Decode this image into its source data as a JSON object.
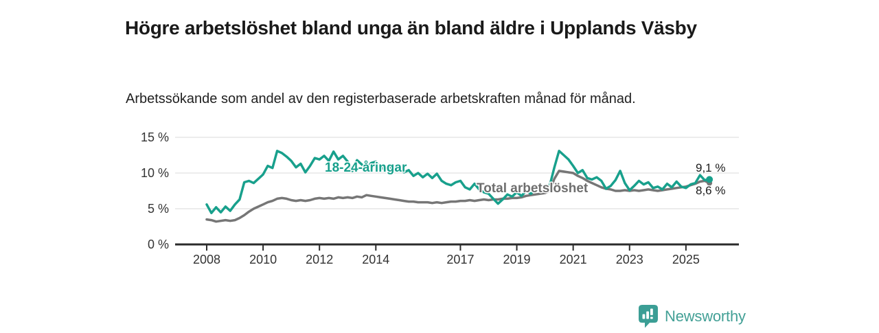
{
  "header": {
    "title": "Högre arbetslöshet bland unga än bland äldre i Upplands Väsby",
    "subtitle": "Arbetssökande som andel av den registerbaserade arbetskraften månad för månad."
  },
  "chart_data": {
    "type": "line",
    "unit": "%",
    "grid": "horizontal",
    "ylim": [
      0,
      15
    ],
    "y_ticks": [
      {
        "value": 0,
        "label": "0 %"
      },
      {
        "value": 5,
        "label": "5 %"
      },
      {
        "value": 10,
        "label": "10 %"
      },
      {
        "value": 15,
        "label": "15 %"
      }
    ],
    "x_ticks": [
      {
        "value": 2008,
        "label": "2008"
      },
      {
        "value": 2010,
        "label": "2010"
      },
      {
        "value": 2012,
        "label": "2012"
      },
      {
        "value": 2014,
        "label": "2014"
      },
      {
        "value": 2017,
        "label": "2017"
      },
      {
        "value": 2019,
        "label": "2019"
      },
      {
        "value": 2021,
        "label": "2021"
      },
      {
        "value": 2023,
        "label": "2023"
      },
      {
        "value": 2025,
        "label": "2025"
      }
    ],
    "series": [
      {
        "name": "18-24-åringar",
        "color": "#18a08c",
        "end_label": "9,1 %",
        "end_value": 9.1,
        "start_year": 2008,
        "points_per_year": 6,
        "values": [
          5.6,
          4.4,
          5.2,
          4.5,
          5.3,
          4.7,
          5.6,
          6.3,
          8.7,
          8.9,
          8.6,
          9.2,
          9.8,
          11.0,
          10.7,
          13.1,
          12.8,
          12.3,
          11.7,
          10.8,
          11.3,
          10.1,
          11.0,
          12.1,
          11.9,
          12.4,
          11.7,
          13.0,
          11.9,
          12.4,
          11.6,
          10.3,
          11.8,
          11.2,
          10.6,
          11.4,
          11.6,
          10.9,
          10.4,
          10.9,
          10.3,
          10.6,
          10.1,
          10.4,
          9.6,
          10.0,
          9.4,
          9.9,
          9.3,
          9.9,
          8.9,
          8.5,
          8.3,
          8.7,
          8.9,
          8.0,
          7.7,
          8.5,
          7.7,
          7.3,
          7.1,
          6.4,
          5.7,
          6.3,
          7.0,
          6.7,
          7.3,
          6.8,
          7.5,
          7.1,
          7.8,
          7.4,
          7.6,
          8.2,
          10.8,
          13.1,
          12.5,
          11.9,
          11.0,
          10.0,
          10.4,
          9.3,
          9.1,
          9.4,
          8.9,
          7.8,
          8.2,
          9.0,
          10.3,
          8.6,
          7.6,
          8.2,
          8.9,
          8.4,
          8.7,
          7.9,
          8.1,
          7.7,
          8.5,
          8.0,
          8.8,
          8.1,
          7.9,
          8.4,
          8.6,
          9.7,
          9.0,
          9.1
        ]
      },
      {
        "name": "Total arbetslöshet",
        "color": "#767676",
        "end_label": "8,6 %",
        "end_value": 8.6,
        "start_year": 2008,
        "points_per_year": 6,
        "values": [
          3.5,
          3.4,
          3.2,
          3.3,
          3.4,
          3.3,
          3.4,
          3.7,
          4.1,
          4.6,
          5.0,
          5.3,
          5.6,
          5.9,
          6.1,
          6.4,
          6.5,
          6.4,
          6.2,
          6.1,
          6.2,
          6.1,
          6.2,
          6.4,
          6.5,
          6.4,
          6.5,
          6.4,
          6.6,
          6.5,
          6.6,
          6.5,
          6.7,
          6.6,
          6.9,
          6.8,
          6.7,
          6.6,
          6.5,
          6.4,
          6.3,
          6.2,
          6.1,
          6.0,
          6.0,
          5.9,
          5.9,
          5.9,
          5.8,
          5.9,
          5.8,
          5.9,
          6.0,
          6.0,
          6.1,
          6.1,
          6.2,
          6.1,
          6.2,
          6.3,
          6.2,
          6.3,
          6.3,
          6.4,
          6.4,
          6.5,
          6.5,
          6.6,
          6.8,
          6.9,
          7.0,
          7.1,
          7.2,
          7.5,
          9.2,
          10.3,
          10.2,
          10.1,
          10.0,
          9.6,
          9.3,
          8.9,
          8.6,
          8.3,
          8.0,
          7.8,
          7.7,
          7.5,
          7.5,
          7.6,
          7.5,
          7.6,
          7.5,
          7.6,
          7.7,
          7.6,
          7.5,
          7.6,
          7.7,
          7.8,
          7.9,
          8.0,
          8.1,
          8.3,
          8.5,
          8.8,
          8.9,
          8.6
        ]
      }
    ]
  },
  "footer": {
    "brand": "Newsworthy",
    "brand_color": "#43a096",
    "logo_icon": "newsworthy-chart-bubble-icon"
  }
}
